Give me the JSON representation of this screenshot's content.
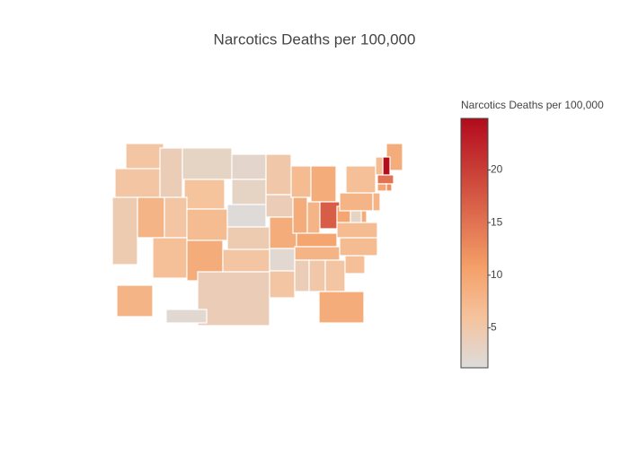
{
  "chart_data": {
    "type": "choropleth",
    "title": "Narcotics Deaths per 100,000",
    "colorbar_title": "Narcotics Deaths per 100,000",
    "values": [
      5.5,
      5.5,
      4.5,
      8,
      4,
      3,
      6,
      5.5,
      7,
      6.5,
      9,
      2.5,
      3,
      1.5,
      4.5,
      5.5,
      4,
      5,
      4,
      9,
      2,
      5.5,
      7,
      9,
      9,
      8,
      17,
      10,
      8,
      4,
      5,
      5.5,
      9,
      6.5,
      7,
      7,
      10,
      8,
      6.5,
      9,
      24.5,
      7,
      15,
      12,
      10,
      8,
      9,
      3,
      8,
      2
    ],
    "zlim": [
      1.2,
      24.9
    ],
    "zticks": [
      5,
      10,
      15,
      20
    ],
    "colorscale": [
      [
        0,
        "rgb(220,220,220)"
      ],
      [
        0.2,
        "rgb(245,195,157)"
      ],
      [
        0.4,
        "rgb(245,160,105)"
      ],
      [
        1,
        "rgb(178,10,28)"
      ]
    ]
  }
}
